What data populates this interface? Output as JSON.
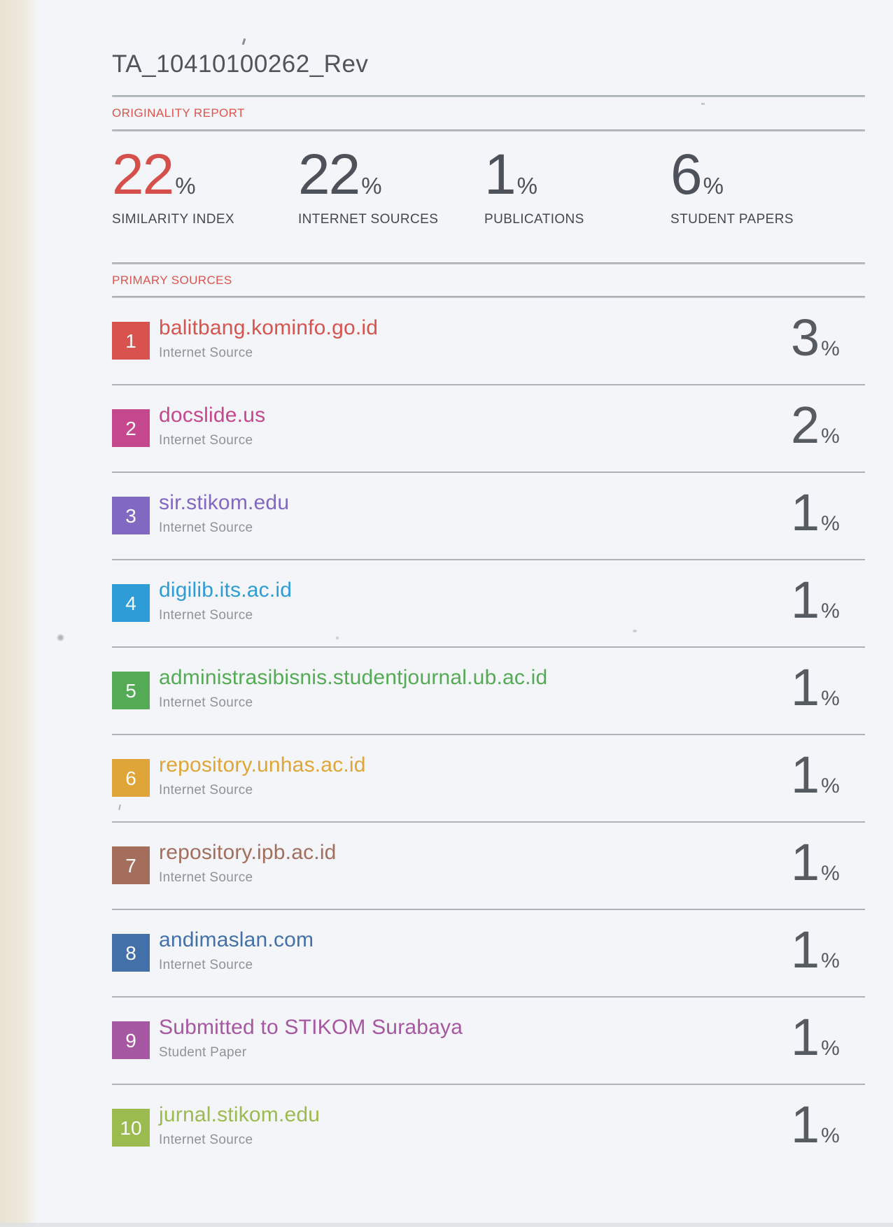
{
  "page": {
    "background_color": "#f3f5f8",
    "left_edge_color": "#ebe6d7",
    "divider_color": "#adb2b6",
    "accent_red": "#dd544e",
    "heading_text_color": "#50555b",
    "percent_text_color": "#565a61",
    "muted_text_color": "#8f9397"
  },
  "document_title": "TA_10410100262_Rev",
  "originality": {
    "section_label": "ORIGINALITY REPORT",
    "stats": [
      {
        "value": "22",
        "unit": "%",
        "label": "SIMILARITY INDEX",
        "color": "#d6504b"
      },
      {
        "value": "22",
        "unit": "%",
        "label": "INTERNET SOURCES",
        "color": "#4d525a"
      },
      {
        "value": "1",
        "unit": "%",
        "label": "PUBLICATIONS",
        "color": "#4d525a"
      },
      {
        "value": "6",
        "unit": "%",
        "label": "STUDENT PAPERS",
        "color": "#4d525a"
      }
    ]
  },
  "primary_sources": {
    "section_label": "PRIMARY SOURCES",
    "sources": [
      {
        "rank": "1",
        "name": "balitbang.kominfo.go.id",
        "type": "Internet Source",
        "percent": "3",
        "unit": "%",
        "color": "#d8534e"
      },
      {
        "rank": "2",
        "name": "docslide.us",
        "type": "Internet Source",
        "percent": "2",
        "unit": "%",
        "color": "#c5478d"
      },
      {
        "rank": "3",
        "name": "sir.stikom.edu",
        "type": "Internet Source",
        "percent": "1",
        "unit": "%",
        "color": "#8169c2"
      },
      {
        "rank": "4",
        "name": "digilib.its.ac.id",
        "type": "Internet Source",
        "percent": "1",
        "unit": "%",
        "color": "#2e9cd7"
      },
      {
        "rank": "5",
        "name": "administrasibisnis.studentjournal.ub.ac.id",
        "type": "Internet Source",
        "percent": "1",
        "unit": "%",
        "color": "#55aa55"
      },
      {
        "rank": "6",
        "name": "repository.unhas.ac.id",
        "type": "Internet Source",
        "percent": "1",
        "unit": "%",
        "color": "#dfa637"
      },
      {
        "rank": "7",
        "name": "repository.ipb.ac.id",
        "type": "Internet Source",
        "percent": "1",
        "unit": "%",
        "color": "#a36f5c"
      },
      {
        "rank": "8",
        "name": "andimaslan.com",
        "type": "Internet Source",
        "percent": "1",
        "unit": "%",
        "color": "#4470aa"
      },
      {
        "rank": "9",
        "name": "Submitted to STIKOM Surabaya",
        "type": "Student Paper",
        "percent": "1",
        "unit": "%",
        "color": "#a657a1"
      },
      {
        "rank": "10",
        "name": "jurnal.stikom.edu",
        "type": "Internet Source",
        "percent": "1",
        "unit": "%",
        "color": "#9cbb4e"
      }
    ]
  }
}
